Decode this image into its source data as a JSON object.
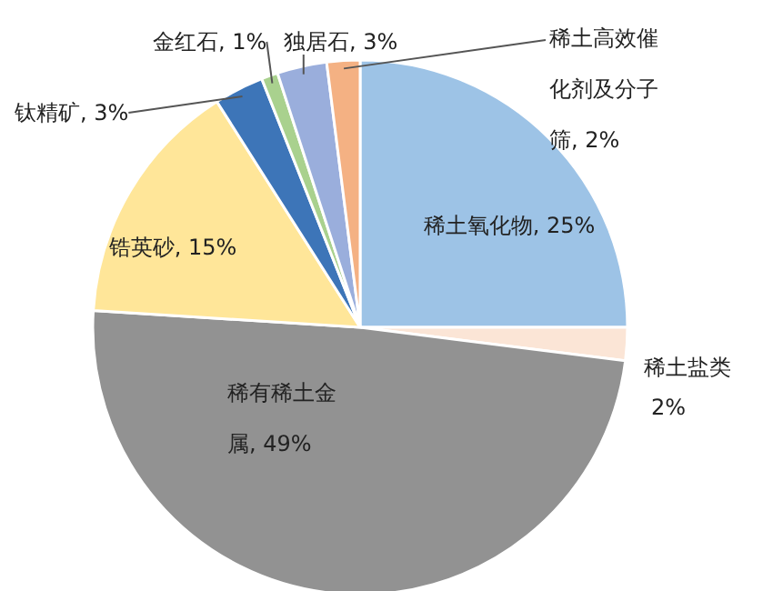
{
  "chart_data": {
    "type": "pie",
    "categories": [
      "稀土氧化物",
      "稀土盐类",
      "稀有稀土金属",
      "锆英砂",
      "钛精矿",
      "金红石",
      "独居石",
      "稀土高效催化剂及分子筛"
    ],
    "values": [
      25,
      2,
      49,
      15,
      3,
      1,
      3,
      2
    ],
    "value_labels": [
      "25%",
      "2%",
      "49%",
      "15%",
      "3%",
      "1%",
      "3%",
      "2%"
    ],
    "colors": [
      "#9dc3e6",
      "#fbe5d6",
      "#929292",
      "#ffe699",
      "#3d75b8",
      "#a9d18e",
      "#9aaedc",
      "#f4b183"
    ]
  }
}
